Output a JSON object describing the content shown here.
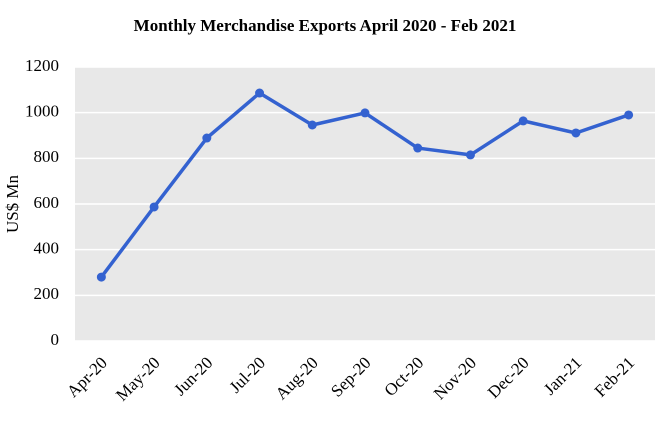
{
  "chart_data": {
    "type": "line",
    "title": "Monthly Merchandise Exports April 2020 - Feb 2021",
    "y_label": "US$ Mn",
    "categories": [
      "Apr-20",
      "May-20",
      "Jun-20",
      "Jul-20",
      "Aug-20",
      "Sep-20",
      "Oct-20",
      "Nov-20",
      "Dec-20",
      "Jan-21",
      "Feb-21"
    ],
    "values": [
      280,
      587,
      889,
      1086,
      946,
      999,
      845,
      815,
      964,
      911,
      990
    ],
    "color": "#3462d0",
    "ylim": [
      0,
      1200
    ],
    "yticks": [
      0,
      200,
      400,
      600,
      800,
      1000,
      1200
    ],
    "grid": true
  }
}
